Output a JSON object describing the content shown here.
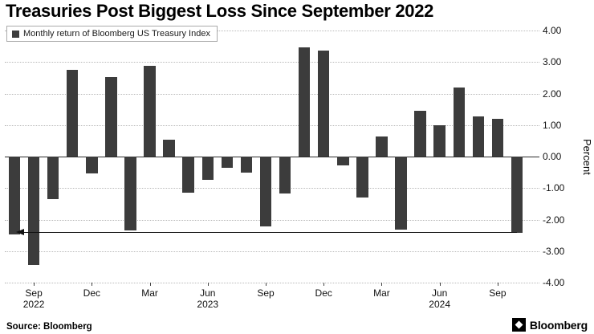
{
  "title": "Treasuries Post Biggest Loss Since September 2022",
  "legend": {
    "label": "Monthly return of Bloomberg US Treasury Index"
  },
  "source": "Source: Bloomberg",
  "logo_text": "Bloomberg",
  "colors": {
    "bar": "#3c3c3c",
    "grid": "#b9b9b9",
    "zero_line": "#2b2b2b",
    "arrow": "#111111"
  },
  "y_axis": {
    "label": "Percent",
    "ticks": [
      "4.00",
      "3.00",
      "2.00",
      "1.00",
      "0.00",
      "-1.00",
      "-2.00",
      "-3.00",
      "-4.00"
    ]
  },
  "x_axis": {
    "ticks": [
      {
        "index": 1,
        "month": "Sep",
        "year": "2022"
      },
      {
        "index": 4,
        "month": "Dec"
      },
      {
        "index": 7,
        "month": "Mar"
      },
      {
        "index": 10,
        "month": "Jun",
        "year": "2023"
      },
      {
        "index": 13,
        "month": "Sep"
      },
      {
        "index": 16,
        "month": "Dec"
      },
      {
        "index": 19,
        "month": "Mar"
      },
      {
        "index": 22,
        "month": "Jun",
        "year": "2024"
      },
      {
        "index": 25,
        "month": "Sep"
      }
    ]
  },
  "chart_data": {
    "type": "bar",
    "title": "Monthly return of Bloomberg US Treasury Index",
    "ylabel": "Percent",
    "ylim": [
      -4,
      4
    ],
    "grid": true,
    "x": [
      "Aug 2022",
      "Sep 2022",
      "Oct 2022",
      "Nov 2022",
      "Dec 2022",
      "Jan 2023",
      "Feb 2023",
      "Mar 2023",
      "Apr 2023",
      "May 2023",
      "Jun 2023",
      "Jul 2023",
      "Aug 2023",
      "Sep 2023",
      "Oct 2023",
      "Nov 2023",
      "Dec 2023",
      "Jan 2024",
      "Feb 2024",
      "Mar 2024",
      "Apr 2024",
      "May 2024",
      "Jun 2024",
      "Jul 2024",
      "Aug 2024",
      "Sep 2024",
      "Oct 2024"
    ],
    "values": [
      -2.48,
      -3.45,
      -1.36,
      2.74,
      -0.53,
      2.51,
      -2.34,
      2.89,
      0.54,
      -1.14,
      -0.75,
      -0.35,
      -0.52,
      -2.21,
      -1.18,
      3.47,
      3.37,
      -0.28,
      -1.31,
      0.64,
      -2.33,
      1.46,
      1.0,
      2.19,
      1.28,
      1.2,
      -2.41
    ],
    "annotation": {
      "type": "arrow",
      "y": -2.42,
      "from_index": 26,
      "to_index": 1,
      "direction": "left"
    }
  }
}
